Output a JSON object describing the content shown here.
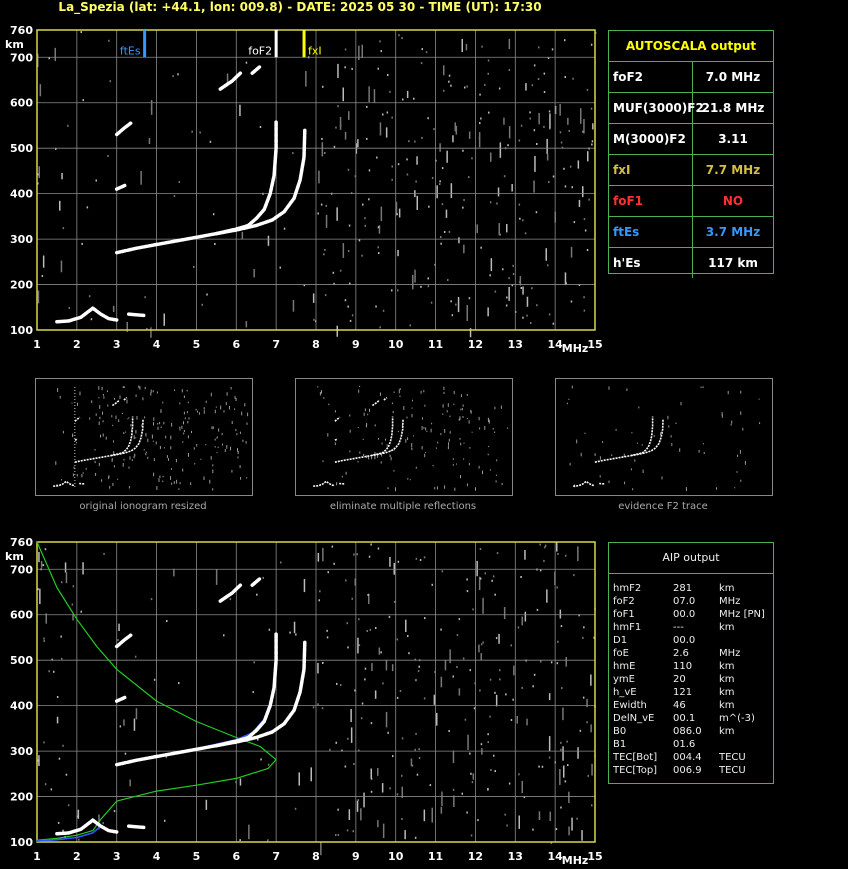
{
  "header": {
    "title": "La_Spezia (lat: +44.1, lon: 009.8) - DATE: 2025 05 30 - TIME (UT): 17:30"
  },
  "autoscala": {
    "title": "AUTOSCALA output",
    "rows": [
      {
        "key": "foF2",
        "value": "7.0 MHz",
        "color": "#ffffff"
      },
      {
        "key": "MUF(3000)F2",
        "value": "21.8 MHz",
        "color": "#ffffff"
      },
      {
        "key": "M(3000)F2",
        "value": "3.11",
        "color": "#ffffff"
      },
      {
        "key": "fxI",
        "value": "7.7 MHz",
        "color": "#d4c040"
      },
      {
        "key": "foF1",
        "value": "NO",
        "color": "#ff3030"
      },
      {
        "key": "ftEs",
        "value": "3.7 MHz",
        "color": "#3399ff"
      },
      {
        "key": "h'Es",
        "value": "117     km",
        "color": "#ffffff"
      }
    ]
  },
  "aip": {
    "title": "AIP output",
    "rows": [
      {
        "key": "hmF2",
        "value": "281",
        "unit": "km"
      },
      {
        "key": "foF2",
        "value": "07.0",
        "unit": "MHz"
      },
      {
        "key": "foF1",
        "value": "00.0",
        "unit": "MHz   [PN]"
      },
      {
        "key": "hmF1",
        "value": "---",
        "unit": "km"
      },
      {
        "key": "D1",
        "value": "00.0",
        "unit": ""
      },
      {
        "key": "foE",
        "value": "2.6",
        "unit": "MHz"
      },
      {
        "key": "hmE",
        "value": "110",
        "unit": "km"
      },
      {
        "key": "ymE",
        "value": "20",
        "unit": "km"
      },
      {
        "key": "h_vE",
        "value": "121",
        "unit": "km"
      },
      {
        "key": "Ewidth",
        "value": "46",
        "unit": "km"
      },
      {
        "key": "DelN_vE",
        "value": "00.1",
        "unit": "m^(-3)"
      },
      {
        "key": "B0",
        "value": "086.0",
        "unit": "km"
      },
      {
        "key": "B1",
        "value": "01.6",
        "unit": ""
      },
      {
        "key": "TEC[Bot]",
        "value": "004.4",
        "unit": "TECU"
      },
      {
        "key": "TEC[Top]",
        "value": "006.9",
        "unit": "TECU"
      }
    ]
  },
  "thumbnails": [
    {
      "caption": "original ionogram resized"
    },
    {
      "caption": "eliminate multiple reflections"
    },
    {
      "caption": "evidence F2 trace"
    }
  ],
  "colors": {
    "axis": "#d8d84a",
    "grid": "#8a8a8a",
    "trace": "#ffffff",
    "profile": "#22cc22",
    "fit": "#3355ff",
    "ftEs": "#3399ff",
    "fxI": "#ffff00"
  },
  "chart_data": [
    {
      "type": "scatter",
      "title": "",
      "xlabel": "MHz",
      "ylabel": "km",
      "xlim": [
        1,
        15
      ],
      "ylim": [
        100,
        760
      ],
      "xticks": [
        1,
        2,
        3,
        4,
        5,
        6,
        7,
        8,
        9,
        10,
        11,
        12,
        13,
        14,
        15
      ],
      "yticks": [
        100,
        200,
        300,
        400,
        500,
        600,
        700,
        760
      ],
      "grid": true,
      "markers": [
        {
          "name": "ftEs",
          "x": 3.7
        },
        {
          "name": "foF2",
          "x": 7.0
        },
        {
          "name": "fxI",
          "x": 7.7
        }
      ],
      "series": [
        {
          "role": "o-trace F2",
          "points": [
            [
              3.0,
              270
            ],
            [
              3.5,
              280
            ],
            [
              4.0,
              288
            ],
            [
              4.5,
              296
            ],
            [
              5.0,
              304
            ],
            [
              5.5,
              312
            ],
            [
              6.0,
              322
            ],
            [
              6.3,
              330
            ],
            [
              6.5,
              345
            ],
            [
              6.7,
              365
            ],
            [
              6.85,
              400
            ],
            [
              6.95,
              440
            ],
            [
              7.0,
              500
            ],
            [
              7.0,
              560
            ]
          ]
        },
        {
          "role": "x-trace F2",
          "points": [
            [
              5.5,
              312
            ],
            [
              6.0,
              320
            ],
            [
              6.5,
              330
            ],
            [
              6.9,
              342
            ],
            [
              7.2,
              360
            ],
            [
              7.45,
              390
            ],
            [
              7.6,
              430
            ],
            [
              7.7,
              480
            ],
            [
              7.72,
              540
            ]
          ]
        },
        {
          "role": "E / Es trace",
          "points": [
            [
              1.5,
              118
            ],
            [
              1.8,
              120
            ],
            [
              2.1,
              128
            ],
            [
              2.4,
              148
            ],
            [
              2.6,
              135
            ],
            [
              2.8,
              125
            ],
            [
              3.0,
              122
            ]
          ]
        },
        {
          "role": "Es trace",
          "points": [
            [
              3.3,
              135
            ],
            [
              3.7,
              132
            ]
          ]
        },
        {
          "role": "second hop",
          "points": [
            [
              5.6,
              630
            ],
            [
              5.9,
              648
            ],
            [
              6.1,
              665
            ]
          ]
        },
        {
          "role": "second hop",
          "points": [
            [
              6.4,
              665
            ],
            [
              6.6,
              680
            ]
          ]
        },
        {
          "role": "second hop",
          "points": [
            [
              3.0,
              530
            ],
            [
              3.2,
              545
            ],
            [
              3.35,
              555
            ]
          ]
        },
        {
          "role": "second hop",
          "points": [
            [
              3.0,
              410
            ],
            [
              3.2,
              418
            ]
          ]
        }
      ]
    },
    {
      "type": "line",
      "title": "",
      "xlabel": "MHz",
      "ylabel": "km",
      "xlim": [
        1,
        15
      ],
      "ylim": [
        100,
        760
      ],
      "xticks": [
        1,
        2,
        3,
        4,
        5,
        6,
        7,
        8,
        9,
        10,
        11,
        12,
        13,
        14,
        15
      ],
      "yticks": [
        100,
        200,
        300,
        400,
        500,
        600,
        700,
        760
      ],
      "grid": true,
      "series": [
        {
          "role": "electron density profile",
          "points": [
            [
              1.0,
              760
            ],
            [
              1.2,
              720
            ],
            [
              1.5,
              660
            ],
            [
              2.0,
              590
            ],
            [
              2.5,
              530
            ],
            [
              3.0,
              480
            ],
            [
              4.0,
              410
            ],
            [
              5.0,
              365
            ],
            [
              6.0,
              330
            ],
            [
              6.6,
              310
            ],
            [
              7.0,
              281
            ],
            [
              6.8,
              262
            ],
            [
              6.0,
              240
            ],
            [
              5.0,
              225
            ],
            [
              4.0,
              212
            ],
            [
              3.0,
              190
            ],
            [
              2.6,
              150
            ],
            [
              2.4,
              125
            ],
            [
              2.0,
              115
            ],
            [
              1.5,
              108
            ],
            [
              1.0,
              104
            ]
          ]
        },
        {
          "role": "model fit",
          "points": [
            [
              1.0,
              102
            ],
            [
              1.5,
              105
            ],
            [
              2.0,
              110
            ],
            [
              2.4,
              120
            ],
            [
              2.6,
              135
            ]
          ]
        },
        {
          "role": "model fit",
          "points": [
            [
              3.0,
              270
            ],
            [
              4.0,
              288
            ],
            [
              5.0,
              305
            ],
            [
              6.0,
              325
            ],
            [
              6.4,
              340
            ],
            [
              6.7,
              370
            ],
            [
              6.9,
              420
            ],
            [
              7.0,
              480
            ]
          ]
        }
      ]
    }
  ]
}
